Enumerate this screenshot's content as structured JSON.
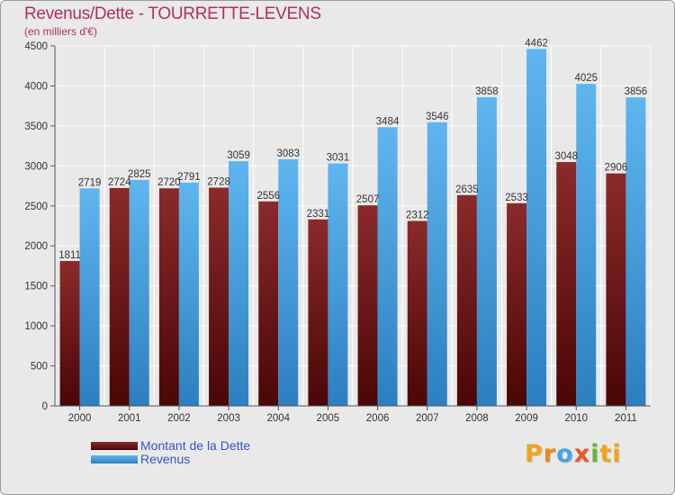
{
  "header": {
    "title": "Revenus/Dette - TOURRETTE-LEVENS",
    "subtitle": "(en milliers d'€)"
  },
  "colors": {
    "dette": "#7a1a1a",
    "dette_dark": "#4a0606",
    "revenus": "#58b0ea",
    "revenus_dark": "#2c7fc0",
    "plot_bg": "#e9e9e9",
    "grid": "#ffffff",
    "title": "#b03060",
    "legend_text": "#3355cc"
  },
  "chart_data": {
    "type": "bar",
    "title": "Revenus/Dette - TOURRETTE-LEVENS",
    "ylabel": "(en milliers d'€)",
    "xlabel": "",
    "categories": [
      "2000",
      "2001",
      "2002",
      "2003",
      "2004",
      "2005",
      "2006",
      "2007",
      "2008",
      "2009",
      "2010",
      "2011"
    ],
    "series": [
      {
        "name": "Montant de la Dette",
        "values": [
          1811,
          2724,
          2720,
          2728,
          2556,
          2331,
          2507,
          2312,
          2635,
          2533,
          3048,
          2906
        ]
      },
      {
        "name": "Revenus",
        "values": [
          2719,
          2825,
          2791,
          3059,
          3083,
          3031,
          3484,
          3546,
          3858,
          4462,
          4025,
          3856
        ]
      }
    ],
    "ylim": [
      0,
      4500
    ],
    "yticks": [
      0,
      500,
      1000,
      1500,
      2000,
      2500,
      3000,
      3500,
      4000,
      4500
    ],
    "grid": true,
    "legend": "bottom-left"
  },
  "legend": {
    "items": [
      {
        "label": "Montant de la Dette"
      },
      {
        "label": "Revenus"
      }
    ]
  },
  "logo": {
    "letters": [
      "P",
      "r",
      "o",
      "x",
      "i",
      "t",
      "i"
    ]
  }
}
